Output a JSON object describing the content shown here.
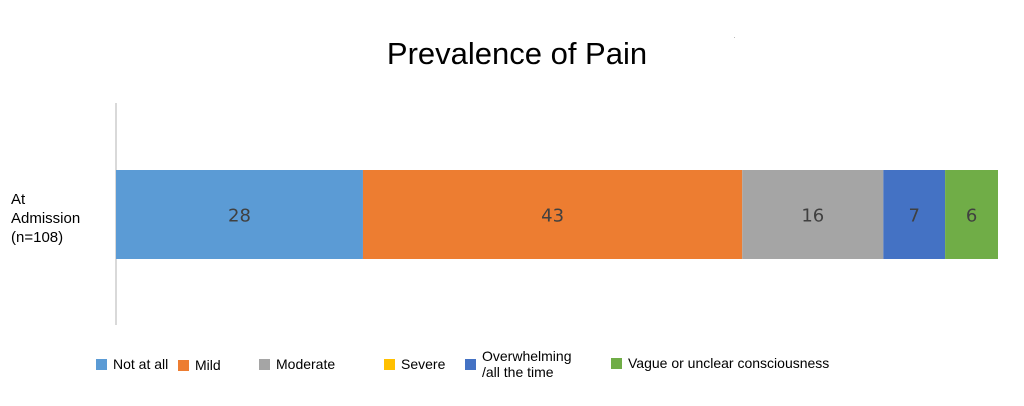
{
  "chart_data": {
    "type": "bar",
    "orientation": "horizontal",
    "stacked": true,
    "title": "Prevalence of Pain",
    "categories": [
      [
        "At",
        "Admission",
        "(n=108)"
      ]
    ],
    "series": [
      {
        "name": "Not at all",
        "values": [
          28
        ],
        "color": "#5b9bd5"
      },
      {
        "name": "Mild",
        "values": [
          43
        ],
        "color": "#ed7d31"
      },
      {
        "name": "Moderate",
        "values": [
          16
        ],
        "color": "#a5a5a5"
      },
      {
        "name": "Severe",
        "values": [
          0
        ],
        "color": "#ffc000"
      },
      {
        "name": "Overwhelming /all the time",
        "label_lines": [
          "Overwhelming",
          "/all the time"
        ],
        "values": [
          7
        ],
        "color": "#4472c4"
      },
      {
        "name": "Vague or unclear consciousness",
        "values": [
          6
        ],
        "color": "#70ad47"
      }
    ],
    "xlim": [
      0,
      100
    ],
    "data_labels": true,
    "grid": false,
    "legend_position": "bottom"
  }
}
